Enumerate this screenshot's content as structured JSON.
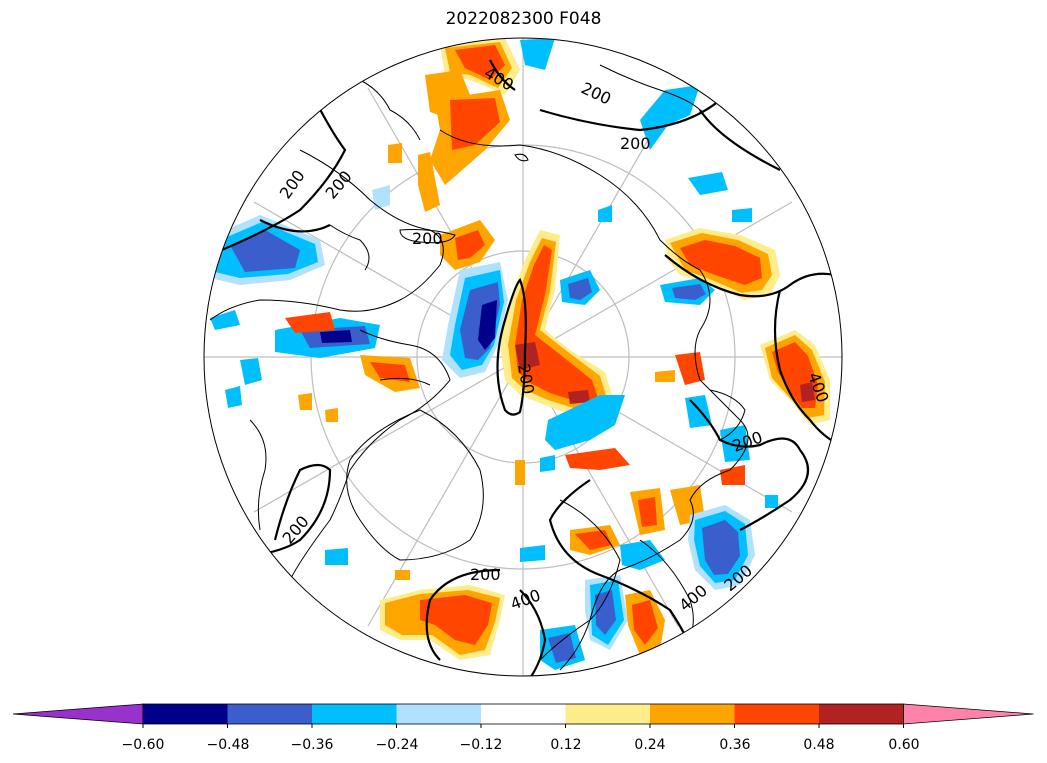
{
  "title": "2022082300 F048",
  "contour_labels": [
    "200",
    "400"
  ],
  "colorbar": {
    "ticks": [
      "−0.60",
      "−0.48",
      "−0.36",
      "−0.24",
      "−0.12",
      "0.12",
      "0.24",
      "0.36",
      "0.48",
      "0.60"
    ],
    "colors": [
      "#9932cc",
      "#00008b",
      "#3a5fcd",
      "#00bfff",
      "#b0e2ff",
      "#ffffff",
      "#ffec8b",
      "#ffa500",
      "#ff4500",
      "#b22222",
      "#ff82ab"
    ],
    "extend": "both"
  },
  "map": {
    "projection": "north polar stereographic",
    "grid": true,
    "field_colors": {
      "neg_light": "#b0e2ff",
      "neg_mid": "#00bfff",
      "neg_strong": "#3a5fcd",
      "neg_max": "#00008b",
      "pos_light": "#ffec8b",
      "pos_mid": "#ffa500",
      "pos_strong": "#ff4500",
      "pos_max": "#b22222"
    }
  }
}
